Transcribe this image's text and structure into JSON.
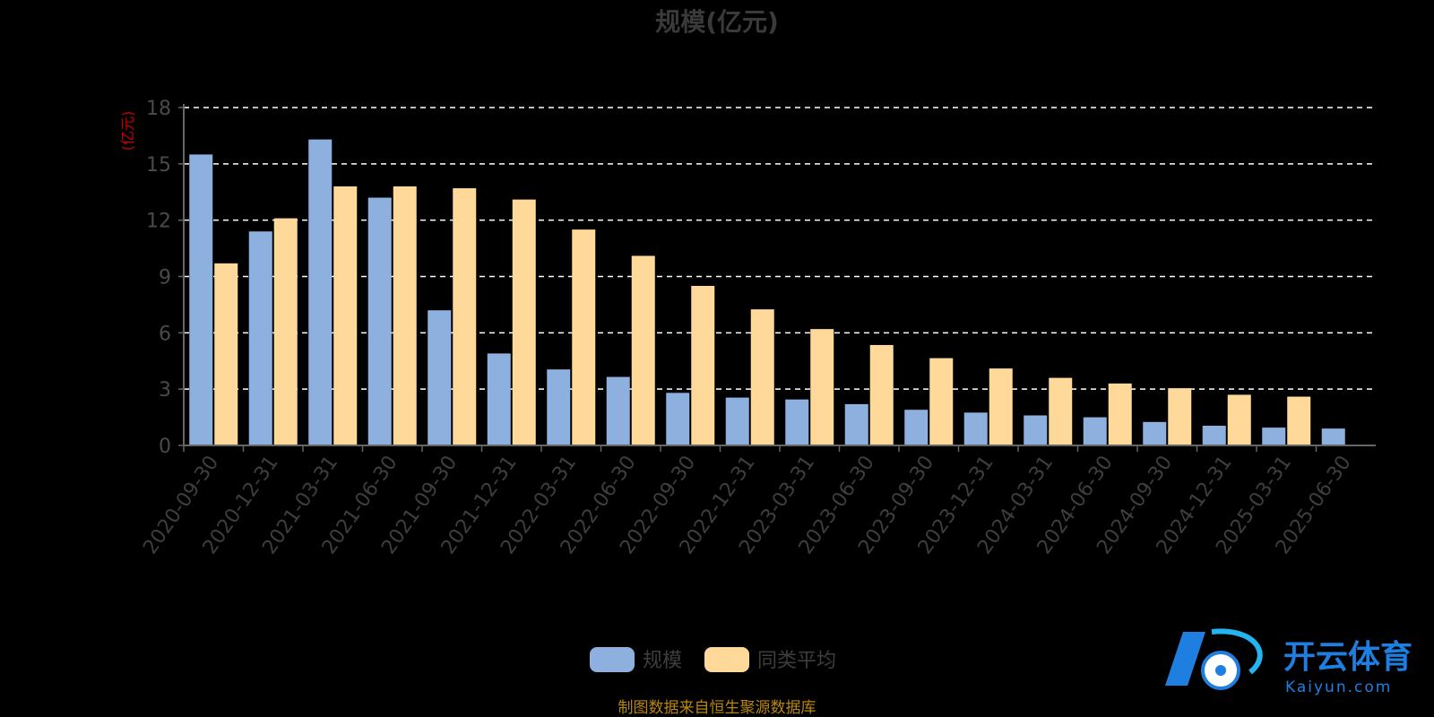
{
  "chart_data": {
    "type": "bar",
    "title": "规模(亿元)",
    "ylabel": "(亿元)",
    "ylim": [
      0,
      18
    ],
    "yticks": [
      0,
      3,
      6,
      9,
      12,
      15,
      18
    ],
    "grid": true,
    "legend_position": "bottom-center",
    "categories": [
      "2020-09-30",
      "2020-12-31",
      "2021-03-31",
      "2021-06-30",
      "2021-09-30",
      "2021-12-31",
      "2022-03-31",
      "2022-06-30",
      "2022-09-30",
      "2022-12-31",
      "2023-03-31",
      "2023-06-30",
      "2023-09-30",
      "2023-12-31",
      "2024-03-31",
      "2024-06-30",
      "2024-09-30",
      "2024-12-31",
      "2025-03-31",
      "2025-06-30"
    ],
    "series": [
      {
        "name": "规模",
        "color": "#8eb0de",
        "values": [
          15.5,
          11.4,
          16.3,
          13.2,
          7.2,
          4.9,
          4.05,
          3.65,
          2.8,
          2.55,
          2.45,
          2.2,
          1.9,
          1.75,
          1.6,
          1.5,
          1.25,
          1.05,
          0.95,
          0.9
        ]
      },
      {
        "name": "同类平均",
        "color": "#ffd99a",
        "values": [
          9.7,
          12.1,
          13.8,
          13.8,
          13.7,
          13.1,
          11.5,
          10.1,
          8.5,
          7.25,
          6.2,
          5.35,
          4.65,
          4.1,
          3.6,
          3.3,
          3.05,
          2.7,
          2.6,
          null
        ]
      }
    ]
  },
  "footer": {
    "source": "制图数据来自恒生聚源数据库"
  },
  "watermark": {
    "brand": "开云体育",
    "domain": "Kaiyun.com"
  },
  "colors": {
    "axis": "#666666",
    "grid": "#ffffff",
    "ylabel": "#cc0000",
    "watermark": "#1e7fe0"
  }
}
